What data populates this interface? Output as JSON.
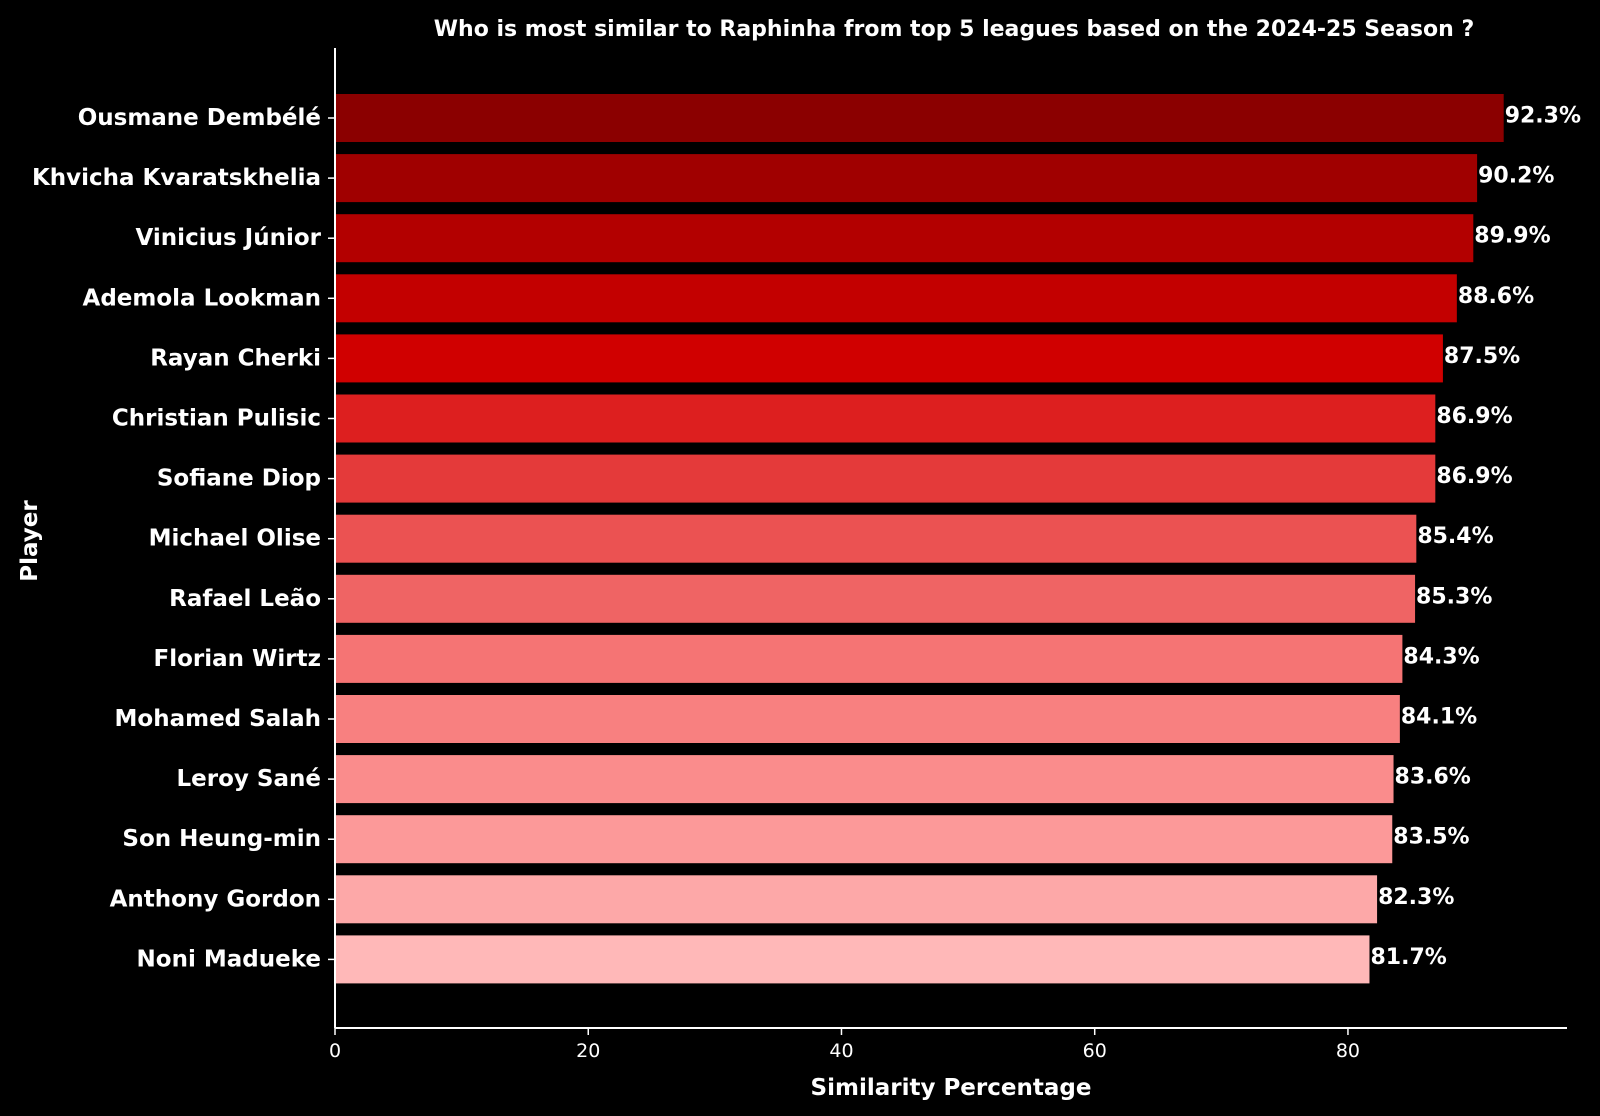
{
  "chart_data": {
    "type": "bar",
    "orientation": "horizontal",
    "title": "Who is most similar to Raphinha from top 5 leagues based on the 2024-25 Season ?",
    "xlabel": "Similarity Percentage",
    "ylabel": "Player",
    "xlim": [
      0,
      97.3
    ],
    "xticks": [
      0,
      20,
      40,
      60,
      80
    ],
    "grid": false,
    "categories": [
      "Ousmane Dembélé",
      "Khvicha Kvaratskhelia",
      "Vinicius Júnior",
      "Ademola Lookman",
      "Rayan Cherki",
      "Christian Pulisic",
      "Sofiane Diop",
      "Michael Olise",
      "Rafael Leão",
      "Florian Wirtz",
      "Mohamed Salah",
      "Leroy Sané",
      "Son Heung-min",
      "Anthony Gordon",
      "Noni Madueke"
    ],
    "values": [
      92.3,
      90.2,
      89.9,
      88.6,
      87.5,
      86.9,
      86.9,
      85.4,
      85.3,
      84.3,
      84.1,
      83.6,
      83.5,
      82.3,
      81.7
    ],
    "data_labels": [
      "92.3%",
      "90.2%",
      "89.9%",
      "88.6%",
      "87.5%",
      "86.9%",
      "86.9%",
      "85.4%",
      "85.3%",
      "84.3%",
      "84.1%",
      "83.6%",
      "83.5%",
      "82.3%",
      "81.7%"
    ],
    "colors": [
      "#8b0000",
      "#a00000",
      "#b30000",
      "#c30000",
      "#d00000",
      "#dd1f1f",
      "#e43a3a",
      "#eb5252",
      "#ef6464",
      "#f57474",
      "#f88080",
      "#fa8c8c",
      "#fc9999",
      "#fda8a8",
      "#ffb8b8"
    ],
    "background": "#000000",
    "text_color": "#ffffff"
  }
}
